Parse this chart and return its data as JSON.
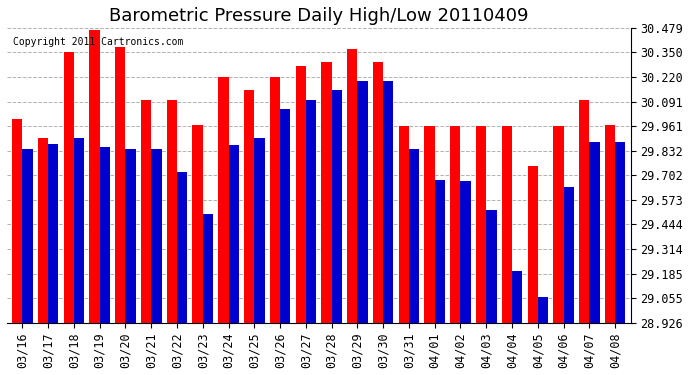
{
  "title": "Barometric Pressure Daily High/Low 20110409",
  "copyright": "Copyright 2011 Cartronics.com",
  "dates": [
    "03/16",
    "03/17",
    "03/18",
    "03/19",
    "03/20",
    "03/21",
    "03/22",
    "03/23",
    "03/24",
    "03/25",
    "03/26",
    "03/27",
    "03/28",
    "03/29",
    "03/30",
    "03/31",
    "04/01",
    "04/02",
    "04/03",
    "04/04",
    "04/05",
    "04/06",
    "04/07",
    "04/08"
  ],
  "highs": [
    30.0,
    29.9,
    30.35,
    30.47,
    30.38,
    30.1,
    30.1,
    29.97,
    30.22,
    30.15,
    30.22,
    30.28,
    30.3,
    30.37,
    30.3,
    29.96,
    29.96,
    29.96,
    29.96,
    29.96,
    29.75,
    29.96,
    30.1,
    29.97
  ],
  "lows": [
    29.84,
    29.87,
    29.9,
    29.85,
    29.84,
    29.84,
    29.72,
    29.5,
    29.86,
    29.9,
    30.05,
    30.1,
    30.15,
    30.2,
    30.2,
    29.84,
    29.68,
    29.67,
    29.52,
    29.2,
    29.06,
    29.64,
    29.88,
    29.88
  ],
  "bar_color_high": "#FF0000",
  "bar_color_low": "#0000CC",
  "background_color": "#FFFFFF",
  "grid_color": "#AAAAAA",
  "yticks": [
    28.926,
    29.055,
    29.185,
    29.314,
    29.444,
    29.573,
    29.702,
    29.832,
    29.961,
    30.091,
    30.22,
    30.35,
    30.479
  ],
  "ymin": 28.926,
  "ymax": 30.479,
  "title_fontsize": 13,
  "tick_fontsize": 8.5
}
